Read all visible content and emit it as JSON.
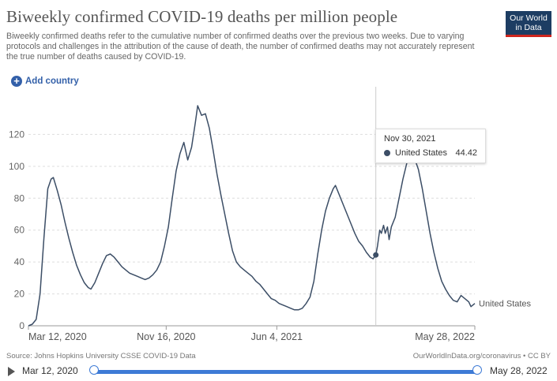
{
  "header": {
    "title": "Biweekly confirmed COVID-19 deaths per million people",
    "subtitle": "Biweekly confirmed deaths refer to the cumulative number of confirmed deaths over the previous two weeks. Due to varying protocols and challenges in the attribution of the cause of death, the number of confirmed deaths may not accurately represent the true number of deaths caused by COVID-19."
  },
  "logo": {
    "line1": "Our World",
    "line2": "in Data",
    "bg_color": "#1d3d63",
    "accent_color": "#ce261e"
  },
  "controls": {
    "add_country_label": "Add country",
    "add_icon": "plus-circle-icon"
  },
  "tooltip": {
    "date": "Nov 30, 2021",
    "series": "United States",
    "value": "44.42"
  },
  "footer": {
    "source": "Source: Johns Hopkins University CSSE COVID-19 Data",
    "license": "OurWorldInData.org/coronavirus • CC BY"
  },
  "timeline": {
    "start_label": "Mar 12, 2020",
    "end_label": "May 28, 2022",
    "play_icon": "play-icon"
  },
  "chart_data": {
    "type": "line",
    "title": "Biweekly confirmed COVID-19 deaths per million people",
    "ylim": [
      0,
      140
    ],
    "yticks": [
      0,
      20,
      40,
      60,
      80,
      100,
      120
    ],
    "xticks": [
      {
        "label": "Mar 12, 2020",
        "date": "2020-03-12"
      },
      {
        "label": "Nov 16, 2020",
        "date": "2020-11-16"
      },
      {
        "label": "Jun 4, 2021",
        "date": "2021-06-04"
      },
      {
        "label": "May 28, 2022",
        "date": "2022-05-28"
      }
    ],
    "xlim": [
      "2020-03-12",
      "2022-05-28"
    ],
    "grid": true,
    "line_color": "#3c4e66",
    "series": [
      {
        "name": "United States",
        "points": [
          [
            "2020-03-12",
            0
          ],
          [
            "2020-03-19",
            1
          ],
          [
            "2020-03-26",
            4
          ],
          [
            "2020-04-02",
            20
          ],
          [
            "2020-04-09",
            55
          ],
          [
            "2020-04-16",
            86
          ],
          [
            "2020-04-22",
            92
          ],
          [
            "2020-04-26",
            93
          ],
          [
            "2020-05-03",
            85
          ],
          [
            "2020-05-10",
            76
          ],
          [
            "2020-05-17",
            65
          ],
          [
            "2020-05-24",
            55
          ],
          [
            "2020-05-31",
            46
          ],
          [
            "2020-06-07",
            38
          ],
          [
            "2020-06-14",
            32
          ],
          [
            "2020-06-21",
            27
          ],
          [
            "2020-06-28",
            24
          ],
          [
            "2020-07-03",
            23
          ],
          [
            "2020-07-10",
            27
          ],
          [
            "2020-07-17",
            33
          ],
          [
            "2020-07-24",
            39
          ],
          [
            "2020-07-31",
            44
          ],
          [
            "2020-08-07",
            45
          ],
          [
            "2020-08-14",
            43
          ],
          [
            "2020-08-21",
            40
          ],
          [
            "2020-08-28",
            37
          ],
          [
            "2020-09-04",
            35
          ],
          [
            "2020-09-11",
            33
          ],
          [
            "2020-09-18",
            32
          ],
          [
            "2020-09-25",
            31
          ],
          [
            "2020-10-02",
            30
          ],
          [
            "2020-10-09",
            29
          ],
          [
            "2020-10-16",
            30
          ],
          [
            "2020-10-23",
            32
          ],
          [
            "2020-10-30",
            35
          ],
          [
            "2020-11-06",
            40
          ],
          [
            "2020-11-13",
            50
          ],
          [
            "2020-11-20",
            62
          ],
          [
            "2020-11-27",
            80
          ],
          [
            "2020-12-04",
            97
          ],
          [
            "2020-12-11",
            108
          ],
          [
            "2020-12-18",
            115
          ],
          [
            "2020-12-25",
            104
          ],
          [
            "2021-01-01",
            112
          ],
          [
            "2021-01-08",
            128
          ],
          [
            "2021-01-12",
            138
          ],
          [
            "2021-01-19",
            132
          ],
          [
            "2021-01-26",
            133
          ],
          [
            "2021-02-02",
            124
          ],
          [
            "2021-02-09",
            110
          ],
          [
            "2021-02-16",
            95
          ],
          [
            "2021-02-23",
            82
          ],
          [
            "2021-03-02",
            70
          ],
          [
            "2021-03-09",
            58
          ],
          [
            "2021-03-16",
            47
          ],
          [
            "2021-03-23",
            40
          ],
          [
            "2021-03-30",
            37
          ],
          [
            "2021-04-06",
            35
          ],
          [
            "2021-04-13",
            33
          ],
          [
            "2021-04-20",
            31
          ],
          [
            "2021-04-27",
            28
          ],
          [
            "2021-05-04",
            26
          ],
          [
            "2021-05-11",
            23
          ],
          [
            "2021-05-18",
            20
          ],
          [
            "2021-05-25",
            17
          ],
          [
            "2021-06-01",
            16
          ],
          [
            "2021-06-08",
            14
          ],
          [
            "2021-06-15",
            13
          ],
          [
            "2021-06-22",
            12
          ],
          [
            "2021-06-29",
            11
          ],
          [
            "2021-07-06",
            10
          ],
          [
            "2021-07-13",
            10
          ],
          [
            "2021-07-20",
            11
          ],
          [
            "2021-07-27",
            14
          ],
          [
            "2021-08-03",
            18
          ],
          [
            "2021-08-10",
            28
          ],
          [
            "2021-08-17",
            45
          ],
          [
            "2021-08-24",
            60
          ],
          [
            "2021-08-31",
            72
          ],
          [
            "2021-09-07",
            80
          ],
          [
            "2021-09-14",
            86
          ],
          [
            "2021-09-18",
            88
          ],
          [
            "2021-09-25",
            82
          ],
          [
            "2021-10-02",
            76
          ],
          [
            "2021-10-09",
            70
          ],
          [
            "2021-10-16",
            64
          ],
          [
            "2021-10-23",
            58
          ],
          [
            "2021-10-30",
            53
          ],
          [
            "2021-11-06",
            50
          ],
          [
            "2021-11-13",
            46
          ],
          [
            "2021-11-20",
            43
          ],
          [
            "2021-11-25",
            42
          ],
          [
            "2021-11-30",
            44.42
          ],
          [
            "2021-12-03",
            50
          ],
          [
            "2021-12-07",
            60
          ],
          [
            "2021-12-10",
            58
          ],
          [
            "2021-12-14",
            63
          ],
          [
            "2021-12-17",
            58
          ],
          [
            "2021-12-21",
            62
          ],
          [
            "2021-12-24",
            54
          ],
          [
            "2021-12-28",
            62
          ],
          [
            "2022-01-04",
            68
          ],
          [
            "2022-01-11",
            80
          ],
          [
            "2022-01-18",
            92
          ],
          [
            "2022-01-25",
            102
          ],
          [
            "2022-02-01",
            108
          ],
          [
            "2022-02-08",
            105
          ],
          [
            "2022-02-15",
            98
          ],
          [
            "2022-02-22",
            86
          ],
          [
            "2022-03-01",
            72
          ],
          [
            "2022-03-08",
            58
          ],
          [
            "2022-03-15",
            46
          ],
          [
            "2022-03-22",
            36
          ],
          [
            "2022-03-29",
            28
          ],
          [
            "2022-04-05",
            23
          ],
          [
            "2022-04-12",
            19
          ],
          [
            "2022-04-19",
            16
          ],
          [
            "2022-04-26",
            15
          ],
          [
            "2022-05-03",
            19
          ],
          [
            "2022-05-10",
            17
          ],
          [
            "2022-05-17",
            15
          ],
          [
            "2022-05-21",
            12
          ],
          [
            "2022-05-28",
            14
          ]
        ]
      }
    ],
    "highlight": {
      "date": "2021-11-30",
      "value": 44.42
    },
    "end_label": "United States"
  }
}
